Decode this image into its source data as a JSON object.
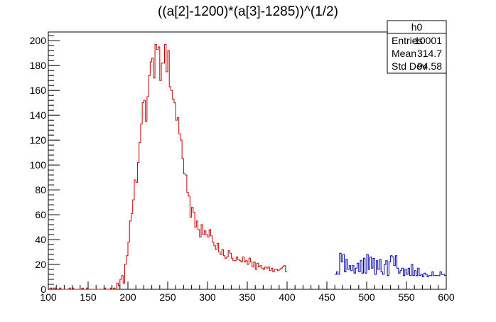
{
  "chart_data": {
    "type": "histogram",
    "title": "((a[2]-1200)*(a[3]-1285))^(1/2)",
    "xlim": [
      100,
      600
    ],
    "ylim": [
      0,
      207
    ],
    "bin_width": 2,
    "x_ticks": [
      100,
      150,
      200,
      250,
      300,
      350,
      400,
      450,
      500,
      550,
      600
    ],
    "y_ticks": [
      0,
      20,
      40,
      60,
      80,
      100,
      120,
      140,
      160,
      180,
      200
    ],
    "series": [
      {
        "color": "#cc0000",
        "x_start": 100,
        "values": [
          0,
          1,
          0,
          1,
          1,
          0,
          0,
          1,
          0,
          0,
          0,
          0,
          0,
          1,
          0,
          1,
          0,
          0,
          0,
          0,
          0,
          1,
          0,
          0,
          1,
          0,
          0,
          0,
          0,
          0,
          0,
          0,
          0,
          0,
          0,
          1,
          0,
          0,
          0,
          1,
          0,
          1,
          0,
          5,
          3,
          8,
          11,
          5,
          20,
          27,
          38,
          55,
          61,
          72,
          88,
          86,
          102,
          118,
          133,
          150,
          152,
          135,
          155,
          172,
          183,
          186,
          170,
          197,
          193,
          195,
          168,
          182,
          182,
          197,
          175,
          192,
          163,
          160,
          153,
          150,
          136,
          138,
          125,
          120,
          105,
          93,
          92,
          78,
          75,
          58,
          66,
          62,
          50,
          55,
          48,
          42,
          52,
          44,
          47,
          44,
          42,
          48,
          43,
          38,
          35,
          32,
          37,
          30,
          28,
          32,
          27,
          25,
          26,
          31,
          29,
          25,
          23,
          23,
          26,
          24,
          23,
          22,
          26,
          22,
          23,
          20,
          25,
          22,
          18,
          22,
          16,
          21,
          18,
          19,
          17,
          16,
          18,
          17,
          18,
          15,
          17,
          14,
          16,
          16,
          15,
          16,
          17,
          18,
          19,
          14
        ]
      },
      {
        "color": "#0000aa",
        "x_start": 460,
        "values": [
          12,
          14,
          12,
          29,
          22,
          28,
          14,
          24,
          16,
          19,
          15,
          19,
          13,
          17,
          21,
          14,
          23,
          13,
          25,
          13,
          28,
          16,
          26,
          17,
          25,
          12,
          23,
          16,
          24,
          14,
          12,
          20,
          23,
          11,
          22,
          27,
          26,
          19,
          27,
          17,
          13,
          15,
          17,
          11,
          16,
          12,
          17,
          11,
          20,
          11,
          15,
          11,
          17,
          11,
          12,
          10,
          13,
          12,
          10,
          11,
          11,
          14,
          11,
          11,
          11,
          11,
          14,
          12,
          12,
          11
        ]
      }
    ]
  },
  "stats": {
    "name": "h0",
    "rows": [
      {
        "label": "Entries",
        "value": "10001"
      },
      {
        "label": "Mean",
        "value": "314.7"
      },
      {
        "label": "Std Dev",
        "value": "94.58"
      }
    ]
  }
}
